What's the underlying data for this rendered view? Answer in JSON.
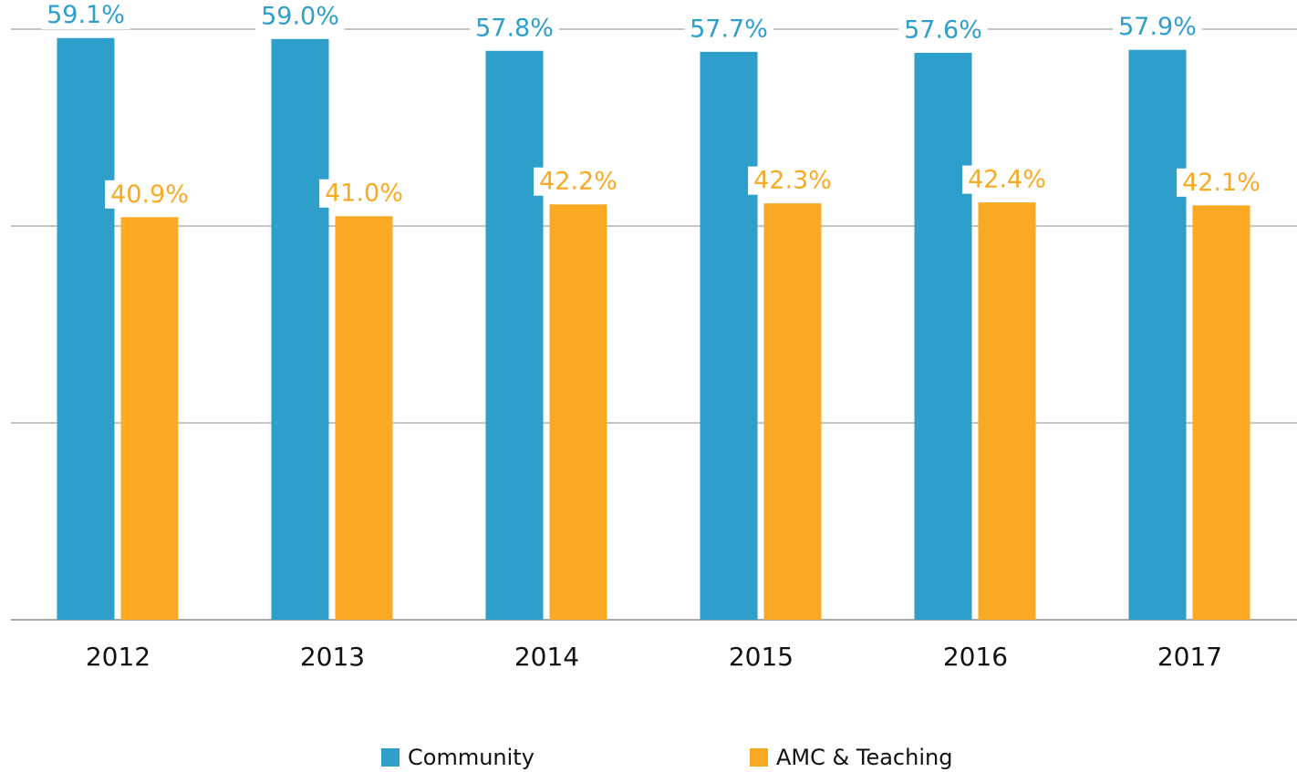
{
  "chart_data": {
    "type": "bar",
    "categories": [
      "2012",
      "2013",
      "2014",
      "2015",
      "2016",
      "2017"
    ],
    "series": [
      {
        "name": "Community",
        "color": "#2e9fca",
        "values": [
          59.1,
          59.0,
          57.8,
          57.7,
          57.6,
          57.9
        ],
        "value_labels": [
          "59.1%",
          "59.0%",
          "57.8%",
          "57.7%",
          "57.6%",
          "57.9%"
        ]
      },
      {
        "name": "AMC & Teaching",
        "color": "#f9a923",
        "values": [
          40.9,
          41.0,
          42.2,
          42.3,
          42.4,
          42.1
        ],
        "value_labels": [
          "40.9%",
          "41.0%",
          "42.2%",
          "42.3%",
          "42.4%",
          "42.1%"
        ]
      }
    ],
    "ylim": [
      0,
      60
    ],
    "yticks": [
      0,
      20,
      40,
      60
    ],
    "grid": true
  }
}
